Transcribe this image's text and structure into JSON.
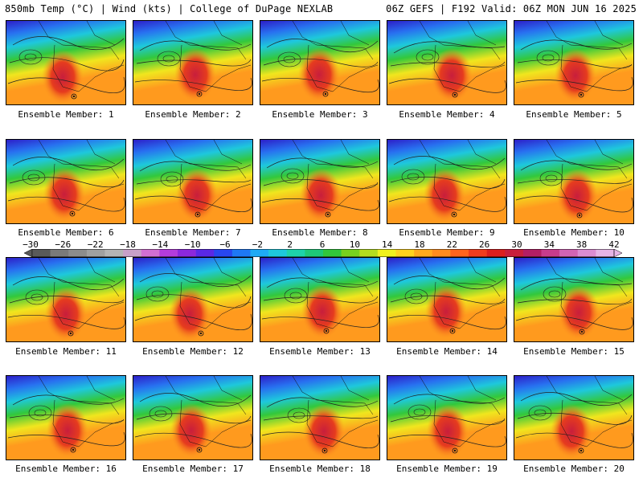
{
  "header": {
    "left": "850mb Temp (°C) | Wind (kts) | College of DuPage NEXLAB",
    "right": "06Z GEFS | F192 Valid: 06Z MON JUN 16 2025"
  },
  "panels": [
    {
      "label": "Ensemble Member: 1"
    },
    {
      "label": "Ensemble Member: 2"
    },
    {
      "label": "Ensemble Member: 3"
    },
    {
      "label": "Ensemble Member: 4"
    },
    {
      "label": "Ensemble Member: 5"
    },
    {
      "label": "Ensemble Member: 6"
    },
    {
      "label": "Ensemble Member: 7"
    },
    {
      "label": "Ensemble Member: 8"
    },
    {
      "label": "Ensemble Member: 9"
    },
    {
      "label": "Ensemble Member: 10"
    },
    {
      "label": "Ensemble Member: 11"
    },
    {
      "label": "Ensemble Member: 12"
    },
    {
      "label": "Ensemble Member: 13"
    },
    {
      "label": "Ensemble Member: 14"
    },
    {
      "label": "Ensemble Member: 15"
    },
    {
      "label": "Ensemble Member: 16"
    },
    {
      "label": "Ensemble Member: 17"
    },
    {
      "label": "Ensemble Member: 18"
    },
    {
      "label": "Ensemble Member: 19"
    },
    {
      "label": "Ensemble Member: 20"
    }
  ],
  "colorbar": {
    "ticks": [
      "−30",
      "−26",
      "−22",
      "−18",
      "−14",
      "−10",
      "−6",
      "−2",
      "2",
      "6",
      "10",
      "14",
      "18",
      "22",
      "26",
      "30",
      "34",
      "38",
      "42"
    ],
    "colors": [
      "#5a5a5a",
      "#7a7a7a",
      "#8c8c8c",
      "#a0a0a0",
      "#b4b4b4",
      "#c8a0c8",
      "#d26ed2",
      "#b43cdc",
      "#8c28dc",
      "#5a28e6",
      "#2846f0",
      "#1e78f5",
      "#1eaaf5",
      "#1ec8dc",
      "#1ed2aa",
      "#1ec878",
      "#32c83c",
      "#78d21e",
      "#b4dc1e",
      "#f0f01e",
      "#ffd21e",
      "#ffaa1e",
      "#ff8c1e",
      "#ff641e",
      "#f03c1e",
      "#dc1e1e",
      "#c81e3c",
      "#b41e64",
      "#c83c8c",
      "#d264b4",
      "#dc8cd2",
      "#e6b4e6"
    ]
  },
  "map_colors": {
    "deep_blue": "#2d1ec8",
    "blue": "#2870f0",
    "cyan": "#1ec8dc",
    "green": "#32c83c",
    "yellow": "#f0e61e",
    "orange": "#ff9a1e",
    "red": "#e63c1e",
    "dark_red": "#c81e3c"
  }
}
